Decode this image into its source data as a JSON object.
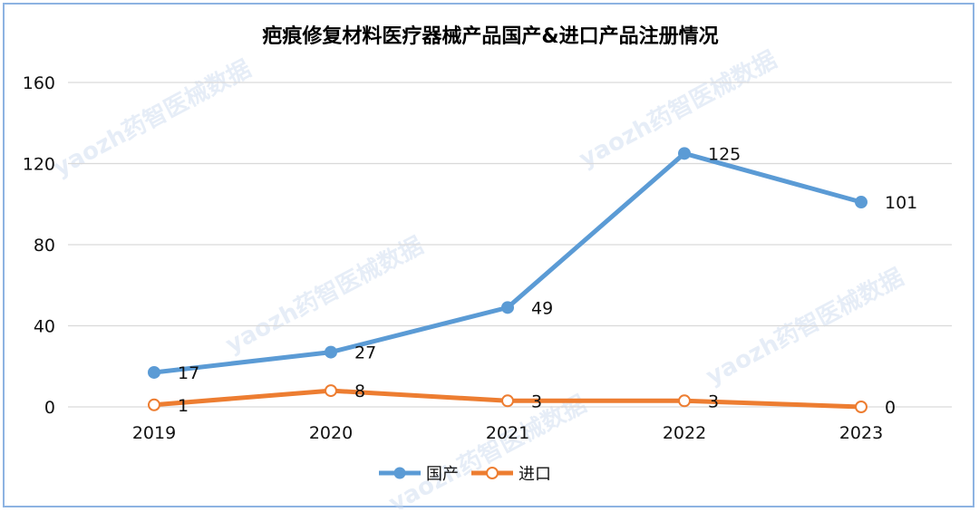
{
  "chart_data": {
    "type": "line",
    "title": "疤痕修复材料医疗器械产品国产&进口产品注册情况",
    "categories": [
      "2019",
      "2020",
      "2021",
      "2022",
      "2023"
    ],
    "series": [
      {
        "name": "国产",
        "values": [
          17,
          27,
          49,
          125,
          101
        ],
        "color": "#5b9bd5",
        "marker": "filled"
      },
      {
        "name": "进口",
        "values": [
          1,
          8,
          3,
          3,
          0
        ],
        "color": "#ed7d31",
        "marker": "hollow"
      }
    ],
    "ylim": [
      0,
      160
    ],
    "yticks": [
      0,
      40,
      80,
      120,
      160
    ],
    "xlabel": "",
    "ylabel": "",
    "grid": true,
    "legend": "bottom"
  },
  "watermark": "yaozh药智医械数据"
}
